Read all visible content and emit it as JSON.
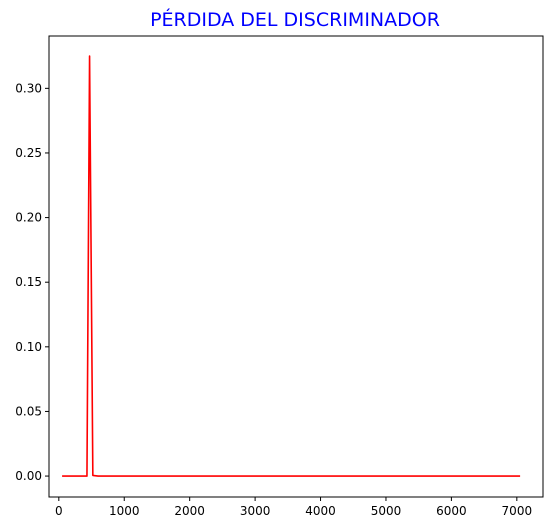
{
  "chart_data": {
    "type": "line",
    "title": "PÉRDIDA DEL DISCRIMINADOR",
    "title_color": "#0000ff",
    "xlabel": "",
    "ylabel": "",
    "xlim": [
      -150,
      7400
    ],
    "ylim": [
      -0.0162,
      0.3405
    ],
    "x_ticks": [
      0,
      1000,
      2000,
      3000,
      4000,
      5000,
      6000,
      7000
    ],
    "x_tick_labels": [
      "0",
      "1000",
      "2000",
      "3000",
      "4000",
      "5000",
      "6000",
      "7000"
    ],
    "y_ticks": [
      0.0,
      0.05,
      0.1,
      0.15,
      0.2,
      0.25,
      0.3
    ],
    "y_tick_labels": [
      "0.00",
      "0.05",
      "0.10",
      "0.15",
      "0.20",
      "0.25",
      "0.30"
    ],
    "grid": false,
    "legend": "none",
    "series": [
      {
        "color": "#ff0000",
        "x": [
          50,
          100,
          150,
          200,
          250,
          300,
          350,
          400,
          430,
          470,
          520,
          600,
          700,
          1000,
          2000,
          3000,
          4000,
          5000,
          6000,
          7000,
          7050
        ],
        "y": [
          0,
          0,
          0,
          0,
          0,
          0,
          0,
          0,
          0,
          0.325,
          0.0005,
          0,
          0,
          0,
          0,
          0,
          0,
          0,
          0,
          0,
          0
        ]
      }
    ]
  }
}
